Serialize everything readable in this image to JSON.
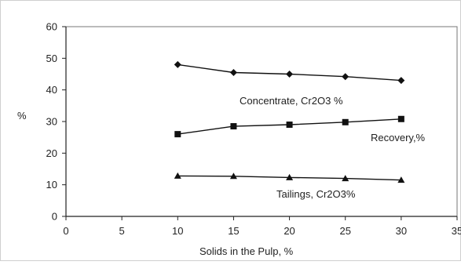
{
  "chart_data": {
    "type": "line",
    "title": "",
    "xlabel": "Solids in the Pulp, %",
    "ylabel": "%",
    "xlim": [
      0,
      35
    ],
    "ylim": [
      0,
      60
    ],
    "x_ticks": [
      0,
      5,
      10,
      15,
      20,
      25,
      30,
      35
    ],
    "y_ticks": [
      0,
      10,
      20,
      30,
      40,
      50,
      60
    ],
    "grid": false,
    "legend": "none",
    "x": [
      10,
      15,
      20,
      25,
      30
    ],
    "series": [
      {
        "name": "Concentrate, Cr2O3 %",
        "marker": "diamond",
        "values": [
          48,
          45.5,
          45,
          44.2,
          43
        ]
      },
      {
        "name": "Recovery,%",
        "marker": "square",
        "values": [
          26,
          28.5,
          29,
          29.8,
          30.8
        ]
      },
      {
        "name": "Tailings, Cr2O3%",
        "marker": "triangle",
        "values": [
          12.8,
          12.7,
          12.3,
          12,
          11.5
        ]
      }
    ]
  }
}
